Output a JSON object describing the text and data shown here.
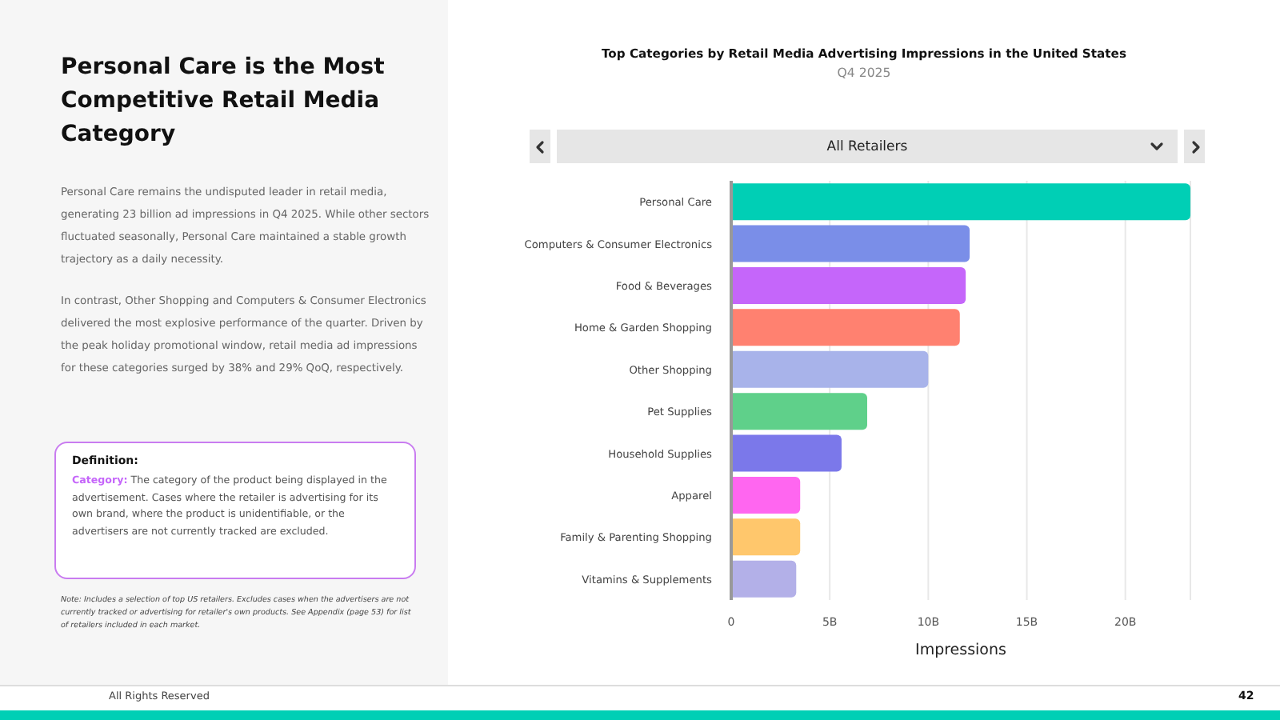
{
  "chart_data": {
    "type": "bar",
    "orientation": "horizontal",
    "title": "Top Categories by Retail Media Advertising Impressions in the United States",
    "subtitle": "Q4 2025",
    "xlabel": "Impressions",
    "categories": [
      "Personal Care",
      "Computers & Consumer Electronics",
      "Food & Beverages",
      "Home & Garden Shopping",
      "Other Shopping",
      "Pet Supplies",
      "Household Supplies",
      "Apparel",
      "Family & Parenting Shopping",
      "Vitamins & Supplements"
    ],
    "values": [
      23.3,
      12.1,
      11.9,
      11.6,
      10.0,
      6.9,
      5.6,
      3.5,
      3.5,
      3.3
    ],
    "colors": [
      "#00cfb5",
      "#7a8ee8",
      "#c566fa",
      "#ff8170",
      "#a8b3ea",
      "#5fd08a",
      "#7b78ea",
      "#ff66f0",
      "#ffc76c",
      "#b3b0e8"
    ],
    "xlim": [
      0,
      23.3
    ],
    "xticks": [
      0,
      {
        "value": 5,
        "label": "5B"
      },
      {
        "value": 10,
        "label": "10B"
      },
      {
        "value": 15,
        "label": "15B"
      },
      {
        "value": 20,
        "label": "20B"
      }
    ],
    "grid": "x",
    "annotations": [
      "Personal Care is the Most Competitive Retail Media Category",
      "Personal Care remains the undisputed leader in retail media, generating 23 billion ad impressions in Q4 2025. While other sectors fluctuated seasonally, Personal Care maintained a stable growth trajectory as a daily necessity.",
      "In contrast, Other Shopping and Computers & Consumer Electronics delivered the most explosive performance of the quarter. Driven by the peak holiday promotional window, retail media ad impressions for these categories surged by 38% and 29% QoQ, respectively.",
      "Definition:",
      "Category:",
      "The category of the product being displayed in the advertisement. Cases where the retailer is advertising for its own brand, where the product is unidentifiable, or the advertisers are not currently tracked are excluded.",
      "Note: Includes a selection of top US retailers. Excludes cases when the advertisers are not currently tracked or advertising for retailer's own products. See Appendix (page 53) for list of retailers included in each market.",
      "All Retailers",
      "All Rights Reserved",
      "42"
    ]
  }
}
